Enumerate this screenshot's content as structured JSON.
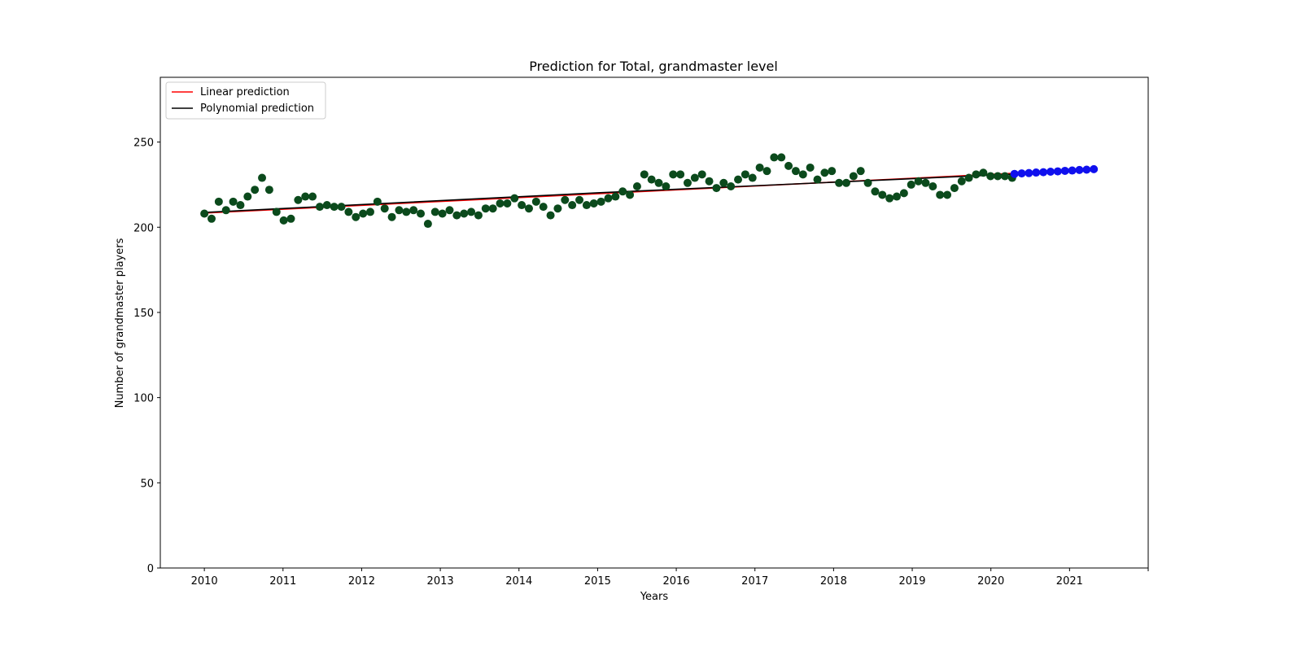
{
  "chart_data": {
    "type": "scatter",
    "title": "Prediction for Total, grandmaster level",
    "xlabel": "Years",
    "ylabel": "Number of grandmaster players",
    "xlim": [
      2009.44,
      2022.0
    ],
    "ylim": [
      0,
      288
    ],
    "xticks": [
      2010,
      2011,
      2012,
      2013,
      2014,
      2015,
      2016,
      2017,
      2018,
      2019,
      2020,
      2021,
      2022
    ],
    "xtick_labels": [
      "2010",
      "2011",
      "2012",
      "2013",
      "2014",
      "2015",
      "2016",
      "2017",
      "2018",
      "2019",
      "2020",
      "2021",
      ""
    ],
    "yticks": [
      0,
      50,
      100,
      150,
      200,
      250
    ],
    "grid": false,
    "legend": {
      "position": "top-left",
      "entries": [
        {
          "label": "Linear prediction",
          "color": "#ff0000"
        },
        {
          "label": "Polynomial prediction",
          "color": "#000000"
        }
      ]
    },
    "series": [
      {
        "kind": "scatter",
        "color": "#0b4a1c",
        "x_start": 2010.0,
        "x_step": 0.0917,
        "values": [
          208,
          205,
          215,
          210,
          215,
          213,
          218,
          222,
          229,
          222,
          209,
          204,
          205,
          216,
          218,
          218,
          212,
          213,
          212,
          212,
          209,
          206,
          208,
          209,
          215,
          211,
          206,
          210,
          209,
          210,
          208,
          202,
          209,
          208,
          210,
          207,
          208,
          209,
          207,
          211,
          211,
          214,
          214,
          217,
          213,
          211,
          215,
          212,
          207,
          211,
          216,
          213,
          216,
          213,
          214,
          215,
          217,
          218,
          221,
          219,
          224,
          231,
          228,
          226,
          224,
          231,
          231,
          226,
          229,
          231,
          227,
          223,
          226,
          224,
          228,
          231,
          229,
          235,
          233,
          241,
          241,
          236,
          233,
          231,
          235,
          228,
          232,
          233,
          226,
          226,
          230,
          233,
          226,
          221,
          219,
          217,
          218,
          220,
          225,
          227,
          226,
          224,
          219,
          219,
          223,
          227,
          229,
          231,
          232,
          230,
          230,
          230,
          229
        ]
      },
      {
        "kind": "scatter",
        "color": "#1010ee",
        "x_start": 2020.3,
        "x_step": 0.0917,
        "values": [
          231.3,
          231.6,
          231.8,
          232.1,
          232.3,
          232.6,
          232.8,
          233.1,
          233.3,
          233.6,
          233.8,
          234.1
        ]
      },
      {
        "kind": "line",
        "name": "Linear prediction",
        "color": "#ff0000",
        "x": [
          2010.0,
          2021.3
        ],
        "y": [
          208.3,
          234.0
        ]
      },
      {
        "kind": "line",
        "name": "Polynomial prediction",
        "color": "#000000",
        "x": [
          2010.0,
          2015.0,
          2020.3
        ],
        "y": [
          208.7,
          220.2,
          231.2
        ]
      }
    ]
  }
}
